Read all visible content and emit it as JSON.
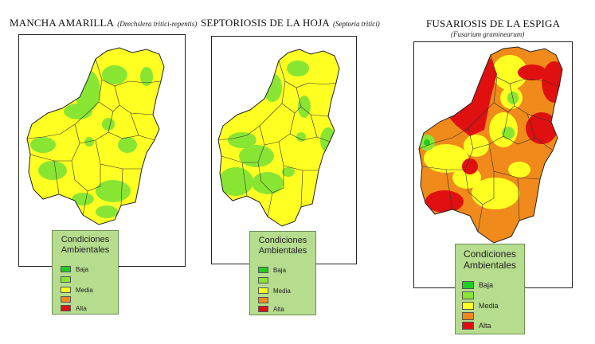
{
  "panels": [
    {
      "title": "MANCHA AMARILLA",
      "scientific_name": "(Drechslera tritici-repentis)",
      "legend": {
        "title_line1": "Condiciones",
        "title_line2": "Ambientales",
        "items": [
          {
            "label": "Baja",
            "color": "#22cc22"
          },
          {
            "label": "",
            "color": "#88e633"
          },
          {
            "label": "Media",
            "color": "#ffff22"
          },
          {
            "label": "",
            "color": "#f08a1a"
          },
          {
            "label": "Alta",
            "color": "#e01010"
          }
        ]
      }
    },
    {
      "title": "SEPTORIOSIS DE LA HOJA",
      "scientific_name": "(Septoria tritici)",
      "legend": {
        "title_line1": "Condiciones",
        "title_line2": "Ambientales",
        "items": [
          {
            "label": "Baja",
            "color": "#22cc22"
          },
          {
            "label": "",
            "color": "#88e633"
          },
          {
            "label": "Media",
            "color": "#ffff22"
          },
          {
            "label": "",
            "color": "#f08a1a"
          },
          {
            "label": "Alta",
            "color": "#e01010"
          }
        ]
      }
    },
    {
      "title": "FUSARIOSIS DE LA ESPIGA",
      "scientific_name": "(Fusarium graminearum)",
      "legend": {
        "title_line1": "Condiciones",
        "title_line2": "Ambientales",
        "items": [
          {
            "label": "Baja",
            "color": "#22cc22"
          },
          {
            "label": "",
            "color": "#88e633"
          },
          {
            "label": "Media",
            "color": "#ffff22"
          },
          {
            "label": "",
            "color": "#f08a1a"
          },
          {
            "label": "Alta",
            "color": "#e01010"
          }
        ]
      }
    }
  ],
  "colors": {
    "low": "#22cc22",
    "low_mid": "#88e633",
    "mid": "#ffff22",
    "mid_high": "#f08a1a",
    "high": "#e01010",
    "legend_bg": "#b6dc8e",
    "border": "#222222"
  }
}
